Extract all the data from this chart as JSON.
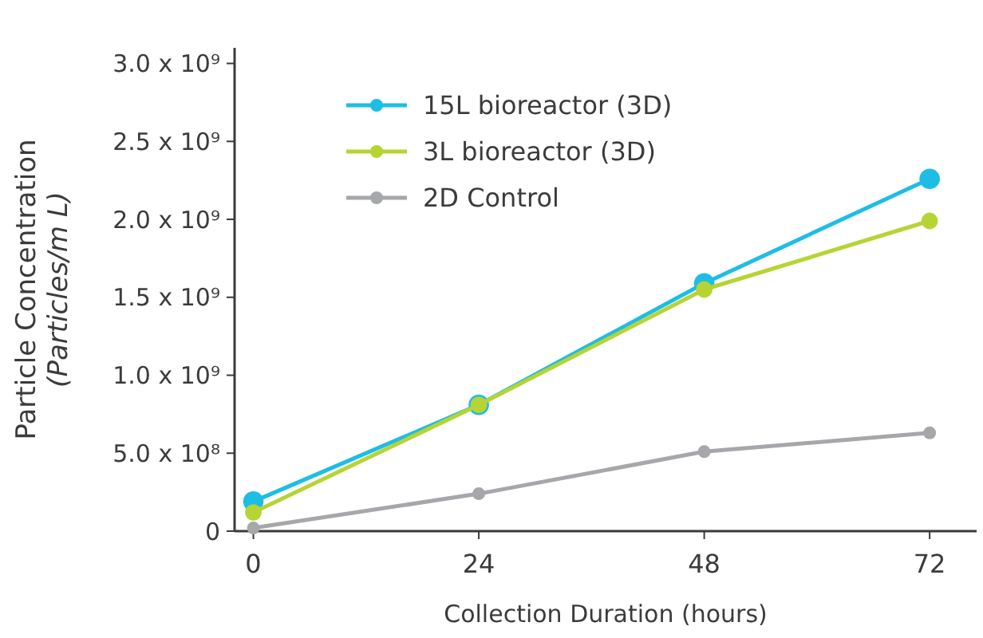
{
  "chart_data": {
    "type": "line",
    "xlabel": "Collection Duration (hours)",
    "ylabel": "Particle Concentration\n(Particles/m L)",
    "x": [
      0,
      24,
      48,
      72
    ],
    "xlim": [
      -2,
      77
    ],
    "xticks": [
      0,
      24,
      48,
      72
    ],
    "ylim": [
      0,
      3100000000
    ],
    "yticks": [
      {
        "value": 0,
        "label": "0"
      },
      {
        "value": 500000000,
        "label": "5.0 x 10⁸"
      },
      {
        "value": 1000000000,
        "label": "1.0 x 10⁹"
      },
      {
        "value": 1500000000,
        "label": "1.5 x 10⁹"
      },
      {
        "value": 2000000000,
        "label": "2.0 x 10⁹"
      },
      {
        "value": 2500000000,
        "label": "2.5 x 10⁹"
      },
      {
        "value": 3000000000,
        "label": "3.0 x 10⁹"
      }
    ],
    "series": [
      {
        "name": "15L bioreactor (3D)",
        "color": "#1ebde6",
        "values": [
          190000000,
          810000000,
          1590000000,
          2260000000
        ]
      },
      {
        "name": "3L bioreactor (3D)",
        "color": "#b6d433",
        "values": [
          120000000,
          810000000,
          1550000000,
          1990000000
        ]
      },
      {
        "name": "2D Control",
        "color": "#a5a7aa",
        "values": [
          20000000,
          240000000,
          510000000,
          630000000
        ]
      }
    ],
    "legend": "top left",
    "marker": "circle",
    "grid": false
  }
}
